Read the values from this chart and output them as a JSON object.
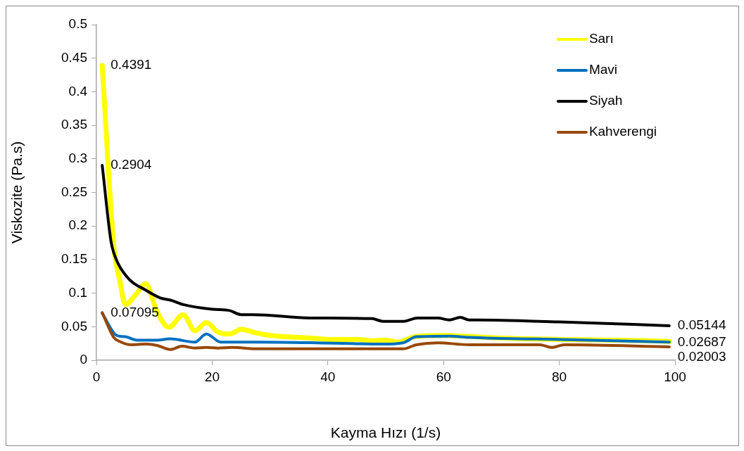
{
  "chart_data": {
    "type": "line",
    "xlabel": "Kayma Hızı (1/s)",
    "ylabel": "Viskozite (Pa.s)",
    "xlim": [
      0,
      100
    ],
    "xticks": [
      0,
      20,
      40,
      60,
      80,
      100
    ],
    "ylim": [
      0,
      0.5
    ],
    "yticks": [
      0,
      0.05,
      0.1,
      0.15,
      0.2,
      0.25,
      0.3,
      0.35,
      0.4,
      0.45,
      0.5
    ],
    "grid": false,
    "legend": "top right",
    "marker": "none",
    "line_style": "solid",
    "series": [
      {
        "name": "Sarı",
        "color": "#ffff00",
        "x": [
          1,
          3,
          4,
          5,
          7,
          8.5,
          10.5,
          12.5,
          15,
          17,
          19,
          21,
          23,
          25,
          27.5,
          30,
          35,
          37,
          40,
          45,
          48,
          50,
          52,
          55,
          60,
          65,
          70,
          80,
          90,
          99
        ],
        "values": [
          0.4391,
          0.17,
          0.12,
          0.083,
          0.1,
          0.114,
          0.072,
          0.049,
          0.068,
          0.044,
          0.056,
          0.042,
          0.039,
          0.046,
          0.041,
          0.037,
          0.034,
          0.033,
          0.031,
          0.031,
          0.029,
          0.03,
          0.027,
          0.035,
          0.037,
          0.035,
          0.033,
          0.031,
          0.03,
          0.028
        ],
        "value_labels": [
          "0.4391",
          null,
          null,
          null,
          null,
          null,
          null,
          null,
          null,
          null,
          null,
          null,
          null,
          null,
          null,
          null,
          null,
          null,
          null,
          null,
          null,
          null,
          null,
          null,
          null,
          null,
          null,
          null,
          null,
          null
        ]
      },
      {
        "name": "Mavi",
        "color": "#0070c0",
        "x": [
          1,
          3.5,
          5,
          7,
          10.5,
          12.7,
          17,
          19,
          21.5,
          27.5,
          38,
          49.5,
          53,
          55.3,
          61,
          64.4,
          80,
          99
        ],
        "values": [
          0.07,
          0.037,
          0.035,
          0.03,
          0.03,
          0.032,
          0.027,
          0.039,
          0.027,
          0.027,
          0.026,
          0.024,
          0.026,
          0.035,
          0.036,
          0.034,
          0.031,
          0.02687
        ],
        "value_labels": [
          null,
          null,
          null,
          null,
          null,
          null,
          null,
          null,
          null,
          null,
          null,
          null,
          null,
          null,
          null,
          null,
          null,
          "0.02687"
        ]
      },
      {
        "name": "Siyah",
        "color": "#000000",
        "x": [
          1,
          2.5,
          3,
          5.2,
          8.6,
          11,
          13,
          15,
          20,
          23,
          25,
          27,
          36.9,
          47.6,
          49.5,
          53,
          55.5,
          59,
          61,
          62.9,
          64.4,
          65.5,
          80,
          99
        ],
        "values": [
          0.2904,
          0.178,
          0.16,
          0.125,
          0.104,
          0.093,
          0.089,
          0.083,
          0.076,
          0.074,
          0.068,
          0.068,
          0.063,
          0.062,
          0.058,
          0.058,
          0.063,
          0.063,
          0.06,
          0.064,
          0.06,
          0.06,
          0.057,
          0.05144
        ],
        "value_labels": [
          "0.2904",
          null,
          null,
          null,
          null,
          null,
          null,
          null,
          null,
          null,
          null,
          null,
          null,
          null,
          null,
          null,
          null,
          null,
          null,
          null,
          null,
          null,
          null,
          "0.05144"
        ]
      },
      {
        "name": "Kahverengi",
        "color": "#984807",
        "x": [
          1,
          3,
          4,
          6,
          8.6,
          10.5,
          12.8,
          14.8,
          17,
          19,
          21,
          23.5,
          27.5,
          38,
          53,
          55.3,
          59,
          64.4,
          76.6,
          78.7,
          80.9,
          99
        ],
        "values": [
          0.07095,
          0.034,
          0.028,
          0.023,
          0.024,
          0.022,
          0.016,
          0.021,
          0.018,
          0.019,
          0.018,
          0.019,
          0.017,
          0.017,
          0.017,
          0.023,
          0.026,
          0.023,
          0.023,
          0.019,
          0.023,
          0.02003
        ],
        "value_labels": [
          "0.07095",
          null,
          null,
          null,
          null,
          null,
          null,
          null,
          null,
          null,
          null,
          null,
          null,
          null,
          null,
          null,
          null,
          null,
          null,
          null,
          null,
          "0.02003"
        ]
      }
    ]
  }
}
